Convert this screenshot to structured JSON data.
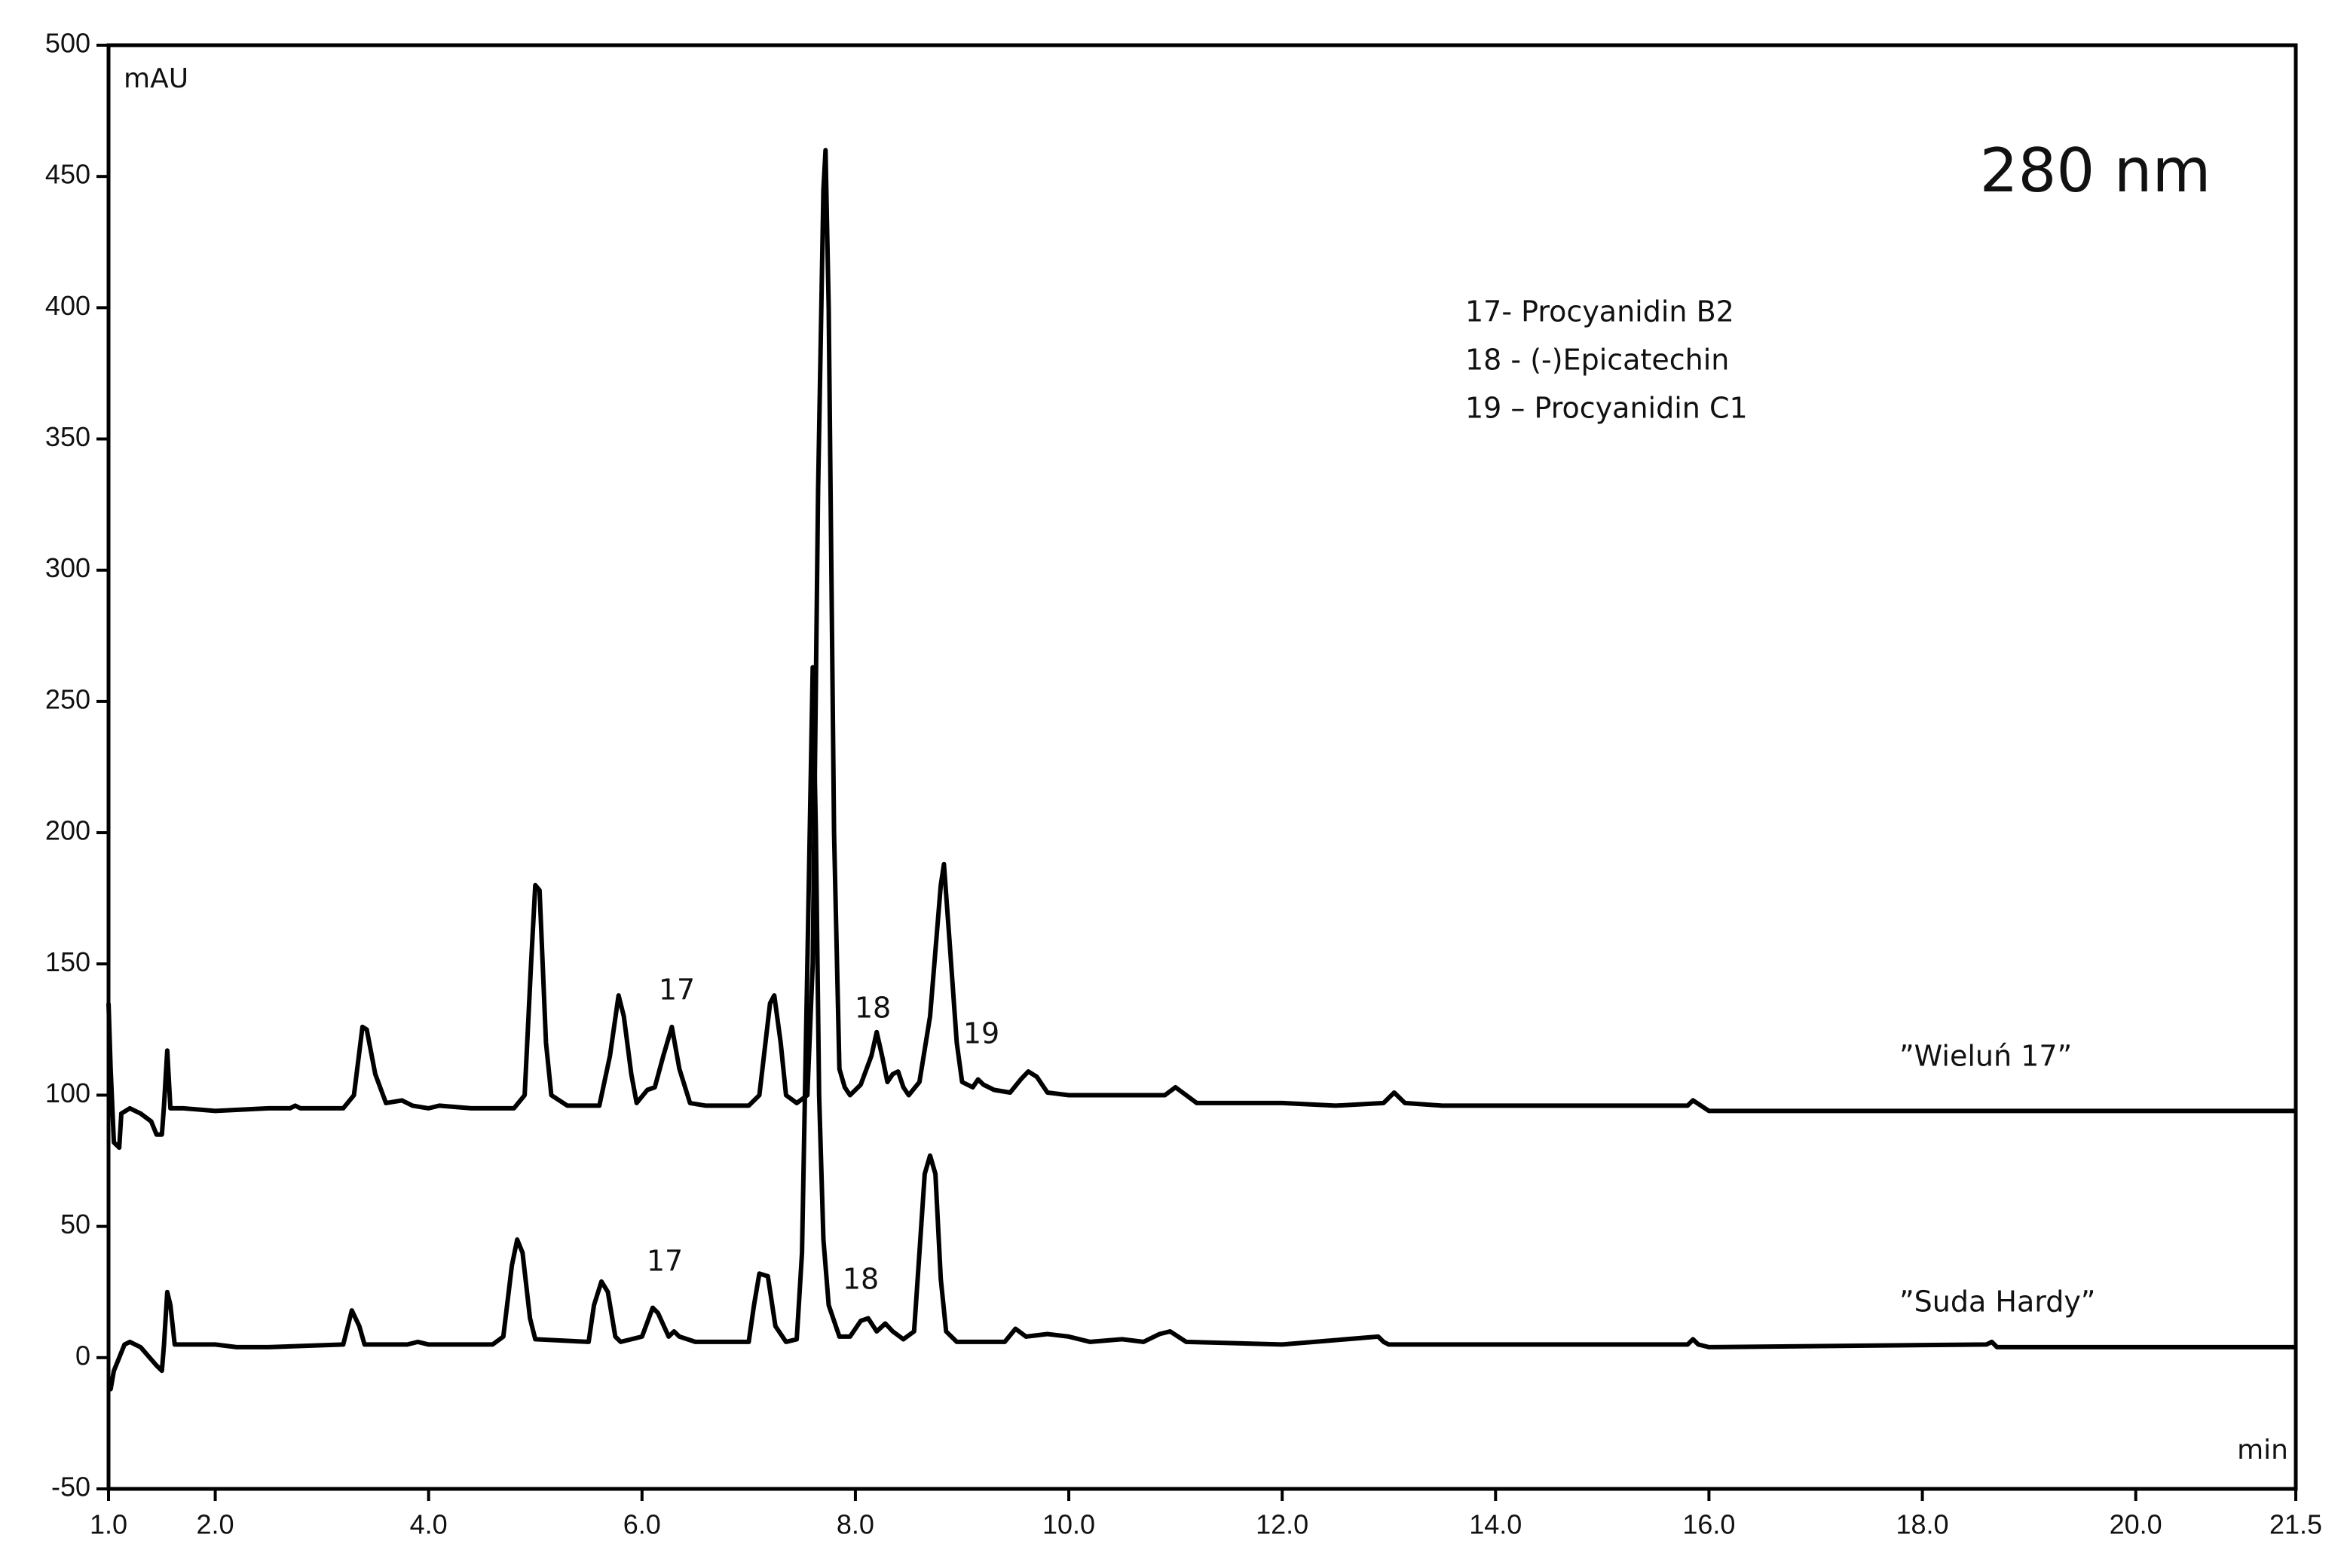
{
  "chart_data": {
    "type": "line",
    "title": "280 nm",
    "y_label": "mAU",
    "x_label": "min",
    "legend_lines": [
      "17- Procyanidin B2",
      "18 -  (-)Epicatechin",
      "19 – Procyanidin C1"
    ],
    "color": "#000000",
    "xlim": [
      1.0,
      21.5
    ],
    "ylim": [
      -50,
      500
    ],
    "xticks": [
      {
        "value": 1.0,
        "label": "1.0"
      },
      {
        "value": 2.0,
        "label": "2.0"
      },
      {
        "value": 4.0,
        "label": "4.0"
      },
      {
        "value": 6.0,
        "label": "6.0"
      },
      {
        "value": 8.0,
        "label": "8.0"
      },
      {
        "value": 10.0,
        "label": "10.0"
      },
      {
        "value": 12.0,
        "label": "12.0"
      },
      {
        "value": 14.0,
        "label": "14.0"
      },
      {
        "value": 16.0,
        "label": "16.0"
      },
      {
        "value": 18.0,
        "label": "18.0"
      },
      {
        "value": 20.0,
        "label": "20.0"
      },
      {
        "value": 21.5,
        "label": "21.5"
      }
    ],
    "yticks": [
      500,
      450,
      400,
      350,
      300,
      250,
      200,
      150,
      100,
      50,
      0,
      -50
    ],
    "series": [
      {
        "name": "”Wieluń 17”",
        "color": "#000000",
        "peak_labels": [
          "17",
          "18",
          "19"
        ],
        "x": [
          1.0,
          1.02,
          1.05,
          1.1,
          1.12,
          1.2,
          1.3,
          1.4,
          1.45,
          1.5,
          1.52,
          1.55,
          1.58,
          1.7,
          2.0,
          2.5,
          2.7,
          2.75,
          2.8,
          3.2,
          3.3,
          3.38,
          3.42,
          3.5,
          3.6,
          3.75,
          3.85,
          4.0,
          4.1,
          4.4,
          4.8,
          4.9,
          4.96,
          5.0,
          5.04,
          5.1,
          5.15,
          5.3,
          5.6,
          5.7,
          5.78,
          5.83,
          5.9,
          5.95,
          6.05,
          6.12,
          6.2,
          6.28,
          6.35,
          6.45,
          6.6,
          7.0,
          7.1,
          7.2,
          7.24,
          7.3,
          7.35,
          7.45,
          7.55,
          7.6,
          7.65,
          7.7,
          7.72,
          7.75,
          7.8,
          7.85,
          7.9,
          7.95,
          8.05,
          8.15,
          8.2,
          8.25,
          8.3,
          8.35,
          8.4,
          8.45,
          8.5,
          8.6,
          8.7,
          8.8,
          8.83,
          8.88,
          8.95,
          9.0,
          9.1,
          9.15,
          9.2,
          9.3,
          9.45,
          9.55,
          9.62,
          9.7,
          9.8,
          10.0,
          10.4,
          10.9,
          11.0,
          11.1,
          11.2,
          12.0,
          12.5,
          12.95,
          13.05,
          13.15,
          13.5,
          15.0,
          15.8,
          15.85,
          16.0,
          20.0,
          20.5,
          21.5
        ],
        "values": [
          135,
          110,
          82,
          80,
          93,
          95,
          93,
          90,
          85,
          85,
          96,
          117,
          95,
          95,
          94,
          95,
          95,
          96,
          95,
          95,
          100,
          126,
          125,
          108,
          97,
          98,
          96,
          95,
          96,
          95,
          95,
          100,
          150,
          180,
          178,
          120,
          100,
          96,
          96,
          115,
          138,
          130,
          108,
          97,
          102,
          103,
          115,
          126,
          110,
          97,
          96,
          96,
          100,
          135,
          138,
          120,
          100,
          97,
          100,
          150,
          330,
          445,
          460,
          400,
          200,
          110,
          103,
          100,
          104,
          115,
          124,
          115,
          105,
          108,
          109,
          103,
          100,
          105,
          130,
          180,
          188,
          160,
          120,
          105,
          103,
          106,
          104,
          102,
          101,
          106,
          109,
          107,
          101,
          100,
          100,
          100,
          103,
          100,
          97,
          97,
          96,
          97,
          101,
          97,
          96,
          96,
          96,
          98,
          94,
          94,
          94,
          94
        ]
      },
      {
        "name": "”Suda Hardy”",
        "color": "#000000",
        "peak_labels": [
          "17",
          "18"
        ],
        "x": [
          1.0,
          1.02,
          1.05,
          1.1,
          1.15,
          1.2,
          1.3,
          1.45,
          1.5,
          1.52,
          1.55,
          1.58,
          1.62,
          2.0,
          2.2,
          2.5,
          3.2,
          3.28,
          3.35,
          3.4,
          3.6,
          3.8,
          3.9,
          4.0,
          4.6,
          4.7,
          4.78,
          4.83,
          4.88,
          4.95,
          5.0,
          5.5,
          5.55,
          5.62,
          5.68,
          5.75,
          5.8,
          6.0,
          6.1,
          6.15,
          6.25,
          6.3,
          6.35,
          6.5,
          7.0,
          7.05,
          7.1,
          7.18,
          7.25,
          7.35,
          7.45,
          7.5,
          7.55,
          7.6,
          7.63,
          7.66,
          7.7,
          7.75,
          7.85,
          7.95,
          8.05,
          8.12,
          8.2,
          8.28,
          8.35,
          8.45,
          8.55,
          8.6,
          8.65,
          8.7,
          8.75,
          8.8,
          8.85,
          8.95,
          9.4,
          9.5,
          9.6,
          9.8,
          10.0,
          10.2,
          10.5,
          10.7,
          10.85,
          10.95,
          11.1,
          12.0,
          12.9,
          12.95,
          13.0,
          15.8,
          15.85,
          15.9,
          16.0,
          18.6,
          18.65,
          18.7,
          21.5
        ],
        "values": [
          -10,
          -12,
          -5,
          0,
          5,
          6,
          4,
          -3,
          -5,
          5,
          25,
          20,
          5,
          5,
          4,
          4,
          5,
          18,
          12,
          5,
          5,
          5,
          6,
          5,
          5,
          8,
          35,
          45,
          40,
          15,
          7,
          6,
          20,
          29,
          25,
          8,
          6,
          8,
          19,
          17,
          8,
          10,
          8,
          6,
          6,
          20,
          32,
          31,
          12,
          6,
          7,
          40,
          150,
          263,
          200,
          100,
          45,
          20,
          8,
          8,
          14,
          15,
          10,
          13,
          10,
          7,
          10,
          40,
          70,
          77,
          70,
          30,
          10,
          6,
          6,
          11,
          8,
          9,
          8,
          6,
          7,
          6,
          9,
          10,
          6,
          5,
          8,
          6,
          5,
          5,
          7,
          5,
          4,
          5,
          6,
          4,
          4
        ]
      }
    ]
  }
}
